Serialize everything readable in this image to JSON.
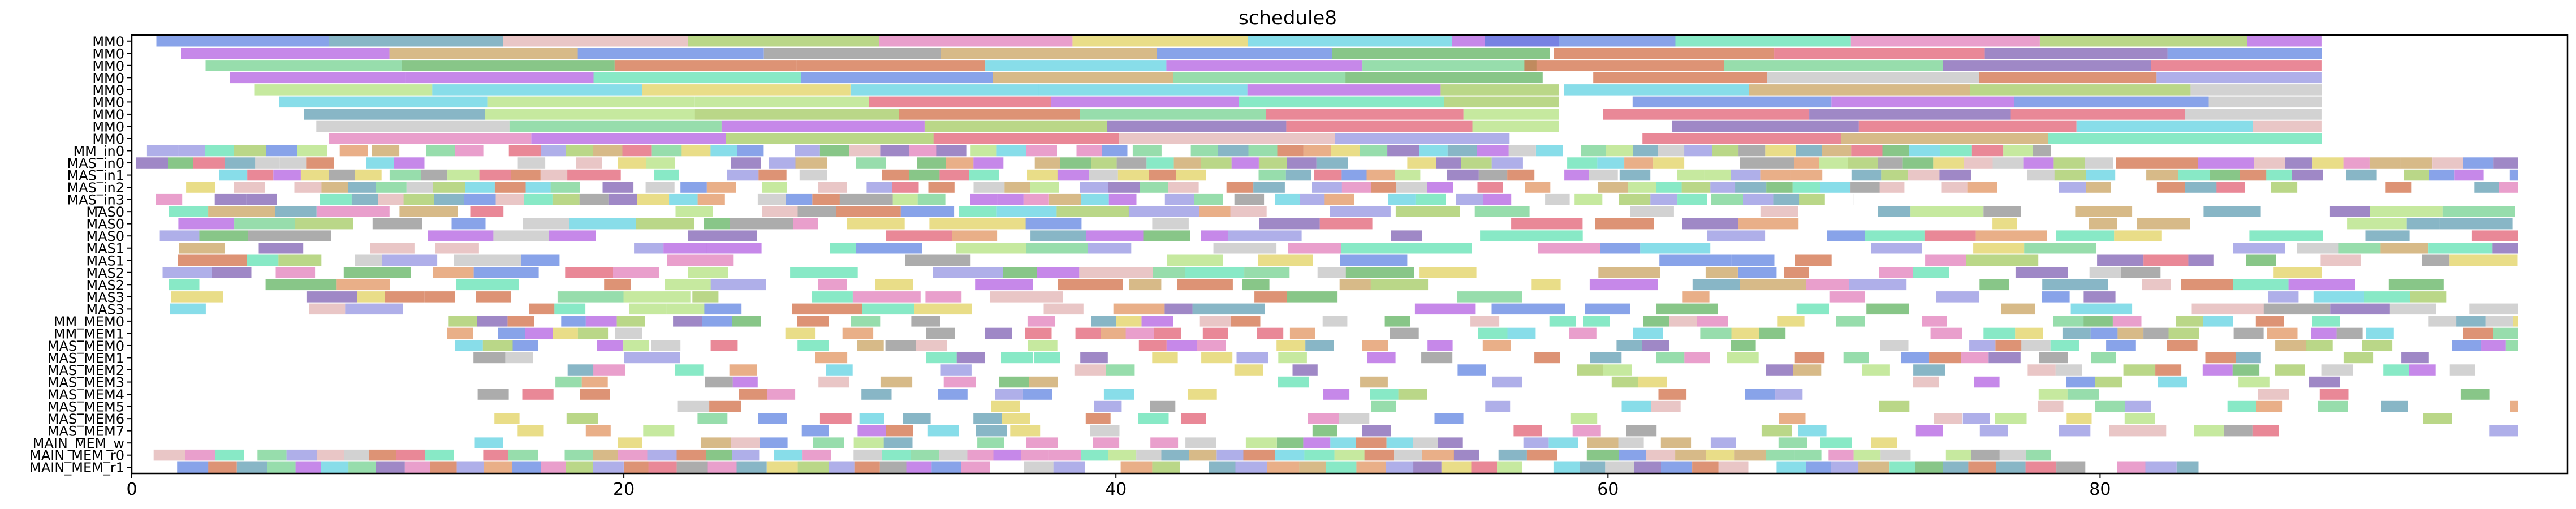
{
  "chart_data": {
    "type": "gantt",
    "title": "schedule8",
    "xlabel": "",
    "ylabel": "",
    "xlim": [
      0,
      99
    ],
    "x_ticks": [
      0,
      20,
      40,
      60,
      80
    ],
    "x_tick_labels": [
      "0",
      "20",
      "40",
      "60",
      "80"
    ],
    "grid": false,
    "legend": "none",
    "rows": [
      "MM0",
      "MM0",
      "MM0",
      "MM0",
      "MM0",
      "MM0",
      "MM0",
      "MM0",
      "MM0",
      "MM_in0",
      "MAS_in0",
      "MAS_in1",
      "MAS_in2",
      "MAS_in3",
      "MAS0",
      "MAS0",
      "MAS0",
      "MAS1",
      "MAS1",
      "MAS2",
      "MAS2",
      "MAS3",
      "MAS3",
      "MM_MEM0",
      "MM_MEM1",
      "MAS_MEM0",
      "MAS_MEM1",
      "MAS_MEM2",
      "MAS_MEM3",
      "MAS_MEM4",
      "MAS_MEM5",
      "MAS_MEM6",
      "MAS_MEM7",
      "MAIN_MEM_w",
      "MAIN_MEM_r0",
      "MAIN_MEM_r1"
    ],
    "rows_from_top": true,
    "color_palette": [
      "#e05a6f",
      "#5a7fe0",
      "#6fd08c",
      "#e0d05a",
      "#b05ae0",
      "#5ad0e0",
      "#e0905a",
      "#8c8c8c",
      "#a0c85a",
      "#e07ab8",
      "#5ae0b0",
      "#7a5ab0",
      "#c8a05a",
      "#5a9ab0",
      "#b0e07a",
      "#e0b0b0",
      "#9090e0",
      "#d06a40",
      "#5ab05a",
      "#c0c0c0"
    ]
  }
}
